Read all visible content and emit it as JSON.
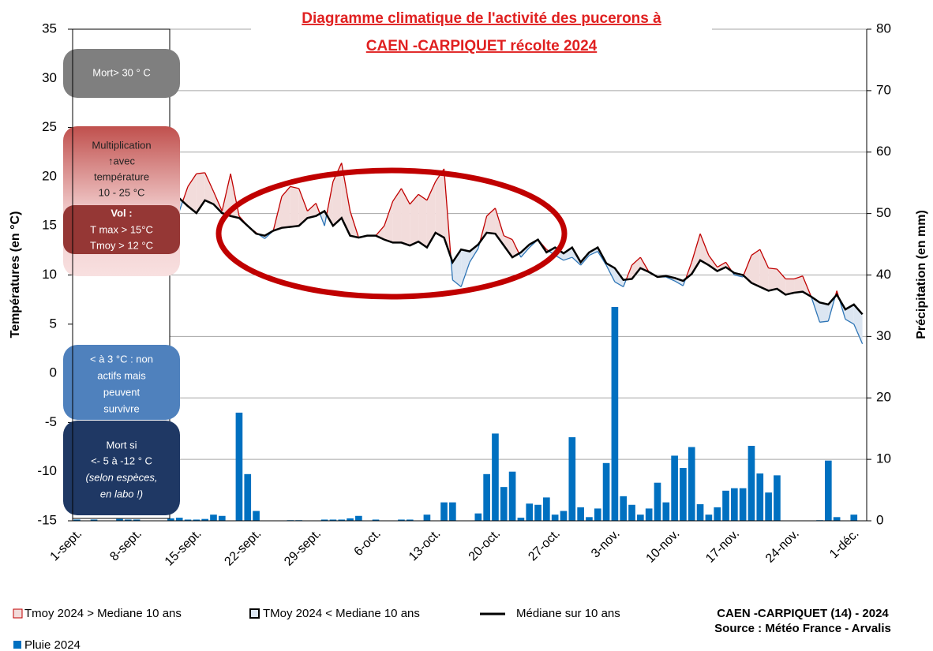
{
  "chart_data": {
    "type": "climate",
    "title": [
      "Diagramme climatique de l'activité des pucerons à",
      "CAEN -CARPIQUET récolte 2024"
    ],
    "ylabel": "Températures (en °C)",
    "y2label": "Précipitation (en mm)",
    "categories": [
      "1-sept.",
      null,
      null,
      null,
      null,
      null,
      null,
      "8-sept.",
      null,
      null,
      null,
      null,
      null,
      null,
      "15-sept.",
      null,
      null,
      null,
      null,
      null,
      null,
      "22-sept.",
      null,
      null,
      null,
      null,
      null,
      null,
      "29-sept.",
      null,
      null,
      null,
      null,
      null,
      null,
      "6-oct.",
      null,
      null,
      null,
      null,
      null,
      null,
      "13-oct.",
      null,
      null,
      null,
      null,
      null,
      null,
      "20-oct.",
      null,
      null,
      null,
      null,
      null,
      null,
      "27-oct.",
      null,
      null,
      null,
      null,
      null,
      null,
      "3-nov.",
      null,
      null,
      null,
      null,
      null,
      null,
      "10-nov.",
      null,
      null,
      null,
      null,
      null,
      null,
      "17-nov.",
      null,
      null,
      null,
      null,
      null,
      null,
      "24-nov.",
      null,
      null,
      null,
      null,
      null,
      null,
      "1-déc.",
      null
    ],
    "ylim": [
      -15,
      35
    ],
    "yticks": [
      -15,
      -10,
      -5,
      0,
      5,
      10,
      15,
      20,
      25,
      30,
      35
    ],
    "y2lim": [
      0,
      80
    ],
    "y2ticks": [
      0,
      10,
      20,
      30,
      40,
      50,
      60,
      70,
      80
    ],
    "grid": "y2",
    "areas": {
      "values": [
        null,
        null,
        null,
        null,
        null,
        null,
        null,
        null,
        null,
        null,
        null,
        17.0,
        16.5,
        19.0,
        20.3,
        20.4,
        18.5,
        16.5,
        20.3,
        16.0,
        15.0,
        14.3,
        13.7,
        14.5,
        18.0,
        19.0,
        18.8,
        16.5,
        17.3,
        15.0,
        19.5,
        21.4,
        16.5,
        13.8,
        14.0,
        14.0,
        15.0,
        17.5,
        18.8,
        17.2,
        18.2,
        17.6,
        19.5,
        20.8,
        9.5,
        8.8,
        11.3,
        12.7,
        16.0,
        16.8,
        14.0,
        13.6,
        11.8,
        12.8,
        13.6,
        12.6,
        12.0,
        11.5,
        11.8,
        11.0,
        12.0,
        12.4,
        11.0,
        9.3,
        8.8,
        11.0,
        11.8,
        10.3,
        9.8,
        9.8,
        9.4,
        8.9,
        11.3,
        14.2,
        12.0,
        10.8,
        11.3,
        10.0,
        9.8,
        12.0,
        12.6,
        10.7,
        10.6,
        9.6,
        9.6,
        9.9,
        7.8,
        5.2,
        5.3,
        8.4,
        5.5,
        5.0,
        3.0
      ],
      "above": {
        "name": "Tmoy 2024 > Mediane 10 ans",
        "color": "#f2dcdb",
        "line_color": "#c00000"
      },
      "below": {
        "name": "TMoy 2024 < Mediane 10 ans",
        "color": "#dce6f2",
        "line_color": "#2e75b6"
      }
    },
    "series": [
      {
        "name": "Médiane sur 10 ans",
        "color": "#000000",
        "values": [
          null,
          null,
          null,
          null,
          null,
          null,
          null,
          null,
          null,
          null,
          null,
          17.0,
          17.8,
          17.0,
          16.3,
          17.6,
          17.2,
          16.3,
          16.0,
          15.8,
          15.0,
          14.2,
          14.0,
          14.5,
          14.8,
          14.9,
          15.0,
          15.8,
          16.0,
          16.5,
          15.0,
          15.8,
          14.0,
          13.8,
          14.0,
          14.0,
          13.6,
          13.3,
          13.3,
          13.0,
          13.4,
          12.8,
          14.3,
          13.8,
          11.3,
          12.6,
          12.4,
          13.1,
          14.3,
          14.2,
          13.0,
          11.8,
          12.3,
          13.1,
          13.6,
          12.3,
          12.8,
          12.2,
          12.8,
          11.3,
          12.3,
          12.8,
          11.2,
          10.7,
          9.5,
          9.6,
          10.7,
          10.3,
          9.8,
          9.9,
          9.7,
          9.4,
          10.1,
          11.5,
          11.0,
          10.4,
          10.8,
          10.2,
          10.0,
          9.2,
          8.8,
          8.4,
          8.6,
          8.0,
          8.2,
          8.3,
          7.8,
          7.2,
          7.0,
          8.0,
          6.5,
          7.0,
          6.0
        ]
      },
      {
        "name": "Pluie 2024",
        "color": "#0070c0",
        "axis": "y2",
        "values": [
          0.2,
          0,
          0.2,
          0,
          0,
          0.3,
          0.2,
          0.2,
          0,
          0,
          0,
          0.4,
          0.5,
          0.2,
          0.2,
          0.3,
          1.0,
          0.8,
          0,
          17.6,
          7.6,
          1.6,
          0,
          0,
          0,
          0.1,
          0.1,
          0,
          0,
          0.2,
          0.2,
          0.2,
          0.4,
          0.8,
          0,
          0.2,
          0,
          0,
          0.2,
          0.2,
          0,
          1.0,
          0,
          3.0,
          3.0,
          0,
          0,
          1.2,
          7.6,
          14.2,
          5.5,
          8.0,
          0.5,
          2.8,
          2.6,
          3.8,
          1.0,
          1.6,
          13.6,
          2.2,
          0.6,
          2.0,
          9.4,
          34.8,
          4.0,
          2.6,
          1.0,
          2.0,
          6.2,
          3.0,
          10.6,
          8.6,
          12.0,
          2.7,
          1.0,
          2.2,
          4.9,
          5.3,
          5.3,
          12.2,
          7.7,
          4.6,
          7.4,
          0,
          0,
          0,
          0,
          0.1,
          9.8,
          0.6,
          0,
          1.0,
          0
        ]
      }
    ],
    "annotations": [
      [
        "Mort> 30 ° C"
      ],
      [
        "Multiplication",
        "↑avec",
        "température",
        "10 - 25 °C"
      ],
      [
        "Vol :",
        "T max > 15°C",
        "Tmoy > 12 °C"
      ],
      [
        "< à 3 °C : non",
        "actifs mais",
        "peuvent",
        "survivre"
      ],
      [
        "Mort  si",
        "<- 5 à -12 ° C",
        "(selon espèces,",
        "en labo !)"
      ]
    ],
    "source": [
      "CAEN -CARPIQUET (14) - 2024",
      "Source : Météo France - Arvalis"
    ]
  }
}
